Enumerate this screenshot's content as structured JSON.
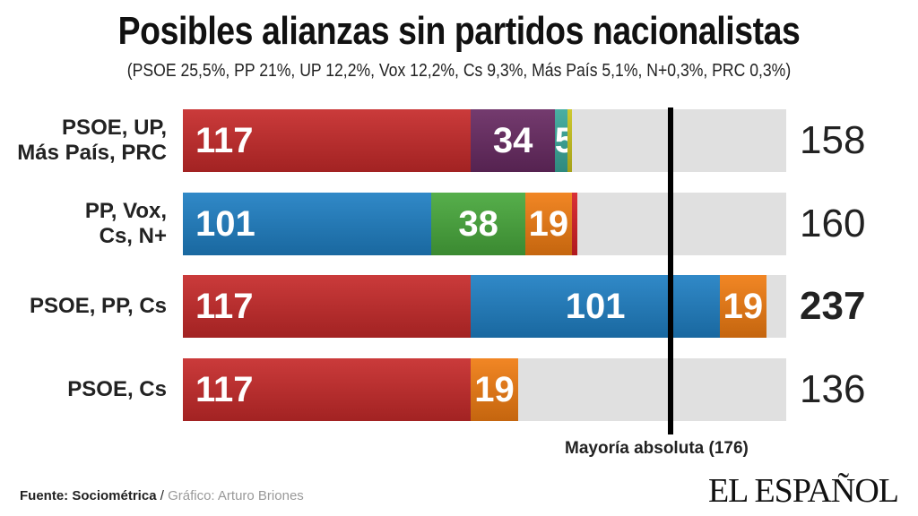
{
  "chart_data": {
    "type": "bar",
    "stacked": true,
    "orientation": "horizontal",
    "title": "Posibles alianzas sin partidos nacionalistas",
    "subtitle": "(PSOE 25,5%, PP 21%, UP 12,2%, Vox 12,2%, Cs 9,3%, Más País 5,1%, N+0,3%, PRC 0,3%)",
    "xlim": [
      0,
      245
    ],
    "majority": {
      "value": 176,
      "label": "Mayoría absoluta (176)"
    },
    "colors": {
      "PSOE": "#c62a2a",
      "UP": "#682a62",
      "Más País": "#3aa89a",
      "PRC": "#c9c41e",
      "PP": "#1f7fc3",
      "Vox": "#48a83c",
      "Cs": "#f07c12",
      "N+": "#d61f26"
    },
    "rows": [
      {
        "label": "PSOE, UP,\nMás País, PRC",
        "total": "158",
        "bold": false,
        "segments": [
          {
            "party": "PSOE",
            "value": 117,
            "text": "117"
          },
          {
            "party": "UP",
            "value": 34,
            "text": "34"
          },
          {
            "party": "Más País",
            "value": 5,
            "text": "5"
          },
          {
            "party": "PRC",
            "value": 2,
            "text": ""
          }
        ]
      },
      {
        "label": "PP, Vox,\nCs, N+",
        "total": "160",
        "bold": false,
        "segments": [
          {
            "party": "PP",
            "value": 101,
            "text": "101"
          },
          {
            "party": "Vox",
            "value": 38,
            "text": "38"
          },
          {
            "party": "Cs",
            "value": 19,
            "text": "19"
          },
          {
            "party": "N+",
            "value": 2,
            "text": ""
          }
        ]
      },
      {
        "label": "PSOE, PP, Cs",
        "total": "237",
        "bold": true,
        "segments": [
          {
            "party": "PSOE",
            "value": 117,
            "text": "117"
          },
          {
            "party": "PP",
            "value": 101,
            "text": "101"
          },
          {
            "party": "Cs",
            "value": 19,
            "text": "19"
          }
        ]
      },
      {
        "label": "PSOE, Cs",
        "total": "136",
        "bold": false,
        "segments": [
          {
            "party": "PSOE",
            "value": 117,
            "text": "117"
          },
          {
            "party": "Cs",
            "value": 19,
            "text": "19"
          }
        ]
      }
    ]
  },
  "footer": {
    "source": "Fuente: Sociométrica",
    "separator": " / ",
    "credit": "Gráfico: Arturo Briones",
    "logo": "EL ESPAÑOL"
  }
}
